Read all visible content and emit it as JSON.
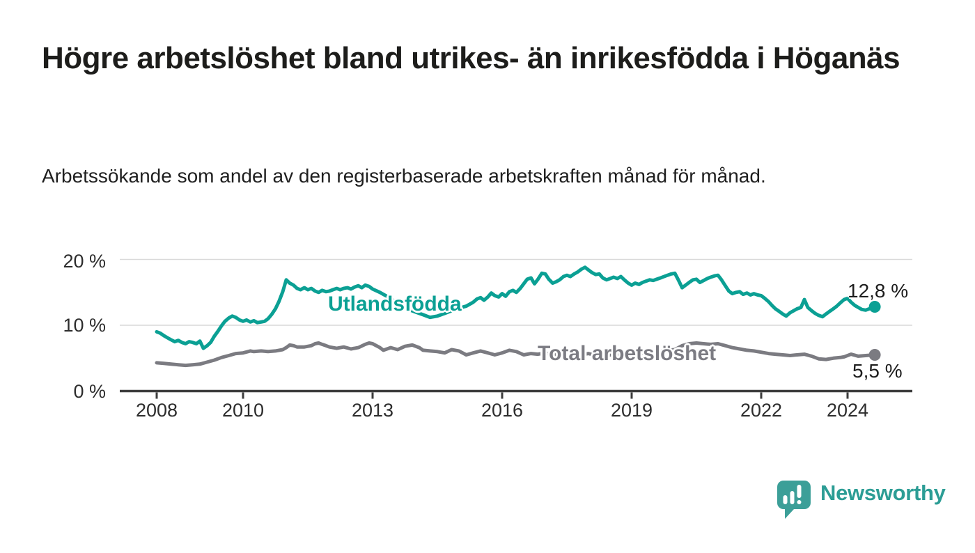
{
  "header": {
    "title": "Högre arbetslöshet bland utrikes- än inrikesfödda i Höganäs",
    "subtitle": "Arbetssökande som andel av den registerbaserade arbetskraften månad för månad."
  },
  "logo": {
    "brand": "Newsworthy"
  },
  "colors": {
    "teal": "#0ba094",
    "gray": "#7b7b81",
    "grid": "#d9d9d9",
    "axis": "#3d3d3d",
    "logo_mark": "#3c9f98",
    "logo_text": "#2c9d95"
  },
  "chart_data": {
    "type": "line",
    "title": "Högre arbetslöshet bland utrikes- än inrikesfödda i Höganäs",
    "xlabel": "",
    "ylabel": "Arbetssökande som andel av den registerbaserade arbetskraften",
    "unit": "%",
    "grid": "horizontal",
    "legend_position": "inline-labels",
    "xlim": [
      2007.15,
      2025.5
    ],
    "ylim": [
      0,
      21
    ],
    "x_tick_years": [
      2008,
      2010,
      2013,
      2016,
      2019,
      2022,
      2024
    ],
    "x_tick_labels": [
      "2008",
      "2010",
      "2013",
      "2016",
      "2019",
      "2022",
      "2024"
    ],
    "y_tick_values": [
      0,
      10,
      20
    ],
    "y_tick_labels": [
      "0 %",
      "10 %",
      "20 %"
    ],
    "y_gridline_values": [
      10,
      20
    ],
    "series": [
      {
        "name": "Total arbetslöshet",
        "color": "#7b7b81",
        "end_label": "5,5 %",
        "end_value": 5.5,
        "points": [
          [
            2008.0,
            4.3
          ],
          [
            2008.17,
            4.2
          ],
          [
            2008.33,
            4.1
          ],
          [
            2008.5,
            4.0
          ],
          [
            2008.67,
            3.9
          ],
          [
            2008.83,
            4.0
          ],
          [
            2009.0,
            4.1
          ],
          [
            2009.17,
            4.4
          ],
          [
            2009.33,
            4.7
          ],
          [
            2009.5,
            5.1
          ],
          [
            2009.67,
            5.4
          ],
          [
            2009.83,
            5.7
          ],
          [
            2010.0,
            5.8
          ],
          [
            2010.17,
            6.1
          ],
          [
            2010.25,
            6.0
          ],
          [
            2010.42,
            6.1
          ],
          [
            2010.58,
            6.0
          ],
          [
            2010.75,
            6.1
          ],
          [
            2010.92,
            6.3
          ],
          [
            2011.0,
            6.6
          ],
          [
            2011.08,
            7.0
          ],
          [
            2011.17,
            6.9
          ],
          [
            2011.25,
            6.7
          ],
          [
            2011.42,
            6.7
          ],
          [
            2011.58,
            6.9
          ],
          [
            2011.67,
            7.2
          ],
          [
            2011.75,
            7.3
          ],
          [
            2011.83,
            7.1
          ],
          [
            2011.92,
            6.9
          ],
          [
            2012.0,
            6.7
          ],
          [
            2012.17,
            6.5
          ],
          [
            2012.33,
            6.7
          ],
          [
            2012.5,
            6.4
          ],
          [
            2012.67,
            6.6
          ],
          [
            2012.83,
            7.1
          ],
          [
            2012.92,
            7.3
          ],
          [
            2013.0,
            7.2
          ],
          [
            2013.17,
            6.6
          ],
          [
            2013.25,
            6.2
          ],
          [
            2013.42,
            6.6
          ],
          [
            2013.58,
            6.3
          ],
          [
            2013.75,
            6.8
          ],
          [
            2013.92,
            7.0
          ],
          [
            2014.08,
            6.6
          ],
          [
            2014.17,
            6.2
          ],
          [
            2014.33,
            6.1
          ],
          [
            2014.5,
            6.0
          ],
          [
            2014.67,
            5.8
          ],
          [
            2014.83,
            6.3
          ],
          [
            2015.0,
            6.1
          ],
          [
            2015.17,
            5.5
          ],
          [
            2015.33,
            5.8
          ],
          [
            2015.5,
            6.1
          ],
          [
            2015.67,
            5.8
          ],
          [
            2015.83,
            5.5
          ],
          [
            2016.0,
            5.8
          ],
          [
            2016.17,
            6.2
          ],
          [
            2016.33,
            6.0
          ],
          [
            2016.5,
            5.5
          ],
          [
            2016.67,
            5.7
          ],
          [
            2016.83,
            5.6
          ],
          [
            2017.0,
            5.8
          ],
          [
            2017.17,
            5.5
          ],
          [
            2017.33,
            5.7
          ],
          [
            2017.5,
            5.4
          ],
          [
            2017.67,
            5.6
          ],
          [
            2017.83,
            5.5
          ],
          [
            2018.0,
            5.7
          ],
          [
            2018.17,
            5.4
          ],
          [
            2018.33,
            5.3
          ],
          [
            2018.5,
            5.5
          ],
          [
            2018.67,
            5.6
          ],
          [
            2018.83,
            5.4
          ],
          [
            2019.0,
            5.5
          ],
          [
            2019.17,
            5.7
          ],
          [
            2019.33,
            5.8
          ],
          [
            2019.5,
            6.0
          ],
          [
            2019.67,
            6.1
          ],
          [
            2019.83,
            6.2
          ],
          [
            2020.0,
            6.3
          ],
          [
            2020.17,
            6.9
          ],
          [
            2020.33,
            7.2
          ],
          [
            2020.5,
            7.3
          ],
          [
            2020.67,
            7.2
          ],
          [
            2020.83,
            7.1
          ],
          [
            2021.0,
            7.2
          ],
          [
            2021.17,
            6.9
          ],
          [
            2021.33,
            6.6
          ],
          [
            2021.5,
            6.4
          ],
          [
            2021.67,
            6.2
          ],
          [
            2021.83,
            6.1
          ],
          [
            2022.0,
            5.9
          ],
          [
            2022.17,
            5.7
          ],
          [
            2022.33,
            5.6
          ],
          [
            2022.5,
            5.5
          ],
          [
            2022.67,
            5.4
          ],
          [
            2022.83,
            5.5
          ],
          [
            2023.0,
            5.6
          ],
          [
            2023.17,
            5.3
          ],
          [
            2023.33,
            4.9
          ],
          [
            2023.5,
            4.8
          ],
          [
            2023.67,
            5.0
          ],
          [
            2023.83,
            5.1
          ],
          [
            2023.92,
            5.2
          ],
          [
            2024.08,
            5.6
          ],
          [
            2024.25,
            5.3
          ],
          [
            2024.42,
            5.4
          ],
          [
            2024.63,
            5.5
          ]
        ]
      },
      {
        "name": "Utlandsfödda",
        "color": "#0ba094",
        "end_label": "12,8 %",
        "end_value": 12.8,
        "points": [
          [
            2008.0,
            9.0
          ],
          [
            2008.08,
            8.8
          ],
          [
            2008.17,
            8.4
          ],
          [
            2008.25,
            8.1
          ],
          [
            2008.33,
            7.8
          ],
          [
            2008.42,
            7.5
          ],
          [
            2008.5,
            7.7
          ],
          [
            2008.58,
            7.4
          ],
          [
            2008.67,
            7.2
          ],
          [
            2008.75,
            7.5
          ],
          [
            2008.83,
            7.4
          ],
          [
            2008.92,
            7.2
          ],
          [
            2009.0,
            7.6
          ],
          [
            2009.08,
            6.5
          ],
          [
            2009.17,
            6.9
          ],
          [
            2009.25,
            7.4
          ],
          [
            2009.33,
            8.3
          ],
          [
            2009.42,
            9.1
          ],
          [
            2009.5,
            9.9
          ],
          [
            2009.58,
            10.6
          ],
          [
            2009.67,
            11.1
          ],
          [
            2009.75,
            11.4
          ],
          [
            2009.83,
            11.2
          ],
          [
            2009.92,
            10.8
          ],
          [
            2010.0,
            10.6
          ],
          [
            2010.08,
            10.8
          ],
          [
            2010.17,
            10.5
          ],
          [
            2010.25,
            10.7
          ],
          [
            2010.33,
            10.4
          ],
          [
            2010.42,
            10.5
          ],
          [
            2010.5,
            10.6
          ],
          [
            2010.58,
            11.0
          ],
          [
            2010.67,
            11.7
          ],
          [
            2010.75,
            12.5
          ],
          [
            2010.83,
            13.6
          ],
          [
            2010.92,
            15.1
          ],
          [
            2011.0,
            16.9
          ],
          [
            2011.08,
            16.4
          ],
          [
            2011.17,
            16.1
          ],
          [
            2011.25,
            15.6
          ],
          [
            2011.33,
            15.4
          ],
          [
            2011.42,
            15.7
          ],
          [
            2011.5,
            15.4
          ],
          [
            2011.58,
            15.6
          ],
          [
            2011.67,
            15.2
          ],
          [
            2011.75,
            15.0
          ],
          [
            2011.83,
            15.3
          ],
          [
            2011.92,
            15.1
          ],
          [
            2012.0,
            15.2
          ],
          [
            2012.08,
            15.4
          ],
          [
            2012.17,
            15.6
          ],
          [
            2012.25,
            15.4
          ],
          [
            2012.33,
            15.6
          ],
          [
            2012.42,
            15.7
          ],
          [
            2012.5,
            15.5
          ],
          [
            2012.58,
            15.8
          ],
          [
            2012.67,
            16.0
          ],
          [
            2012.75,
            15.7
          ],
          [
            2012.83,
            16.1
          ],
          [
            2012.92,
            15.9
          ],
          [
            2013.0,
            15.5
          ],
          [
            2013.17,
            15.0
          ],
          [
            2013.33,
            14.4
          ],
          [
            2013.5,
            13.7
          ],
          [
            2013.67,
            13.0
          ],
          [
            2013.83,
            12.4
          ],
          [
            2014.0,
            12.0
          ],
          [
            2014.17,
            11.6
          ],
          [
            2014.33,
            11.2
          ],
          [
            2014.5,
            11.4
          ],
          [
            2014.67,
            11.8
          ],
          [
            2014.83,
            12.2
          ],
          [
            2015.0,
            12.6
          ],
          [
            2015.17,
            12.9
          ],
          [
            2015.33,
            13.5
          ],
          [
            2015.42,
            14.0
          ],
          [
            2015.5,
            14.2
          ],
          [
            2015.58,
            13.8
          ],
          [
            2015.67,
            14.3
          ],
          [
            2015.75,
            14.9
          ],
          [
            2015.83,
            14.5
          ],
          [
            2015.92,
            14.3
          ],
          [
            2016.0,
            14.8
          ],
          [
            2016.08,
            14.4
          ],
          [
            2016.17,
            15.1
          ],
          [
            2016.25,
            15.3
          ],
          [
            2016.33,
            15.0
          ],
          [
            2016.42,
            15.6
          ],
          [
            2016.5,
            16.3
          ],
          [
            2016.58,
            17.0
          ],
          [
            2016.67,
            17.2
          ],
          [
            2016.75,
            16.3
          ],
          [
            2016.83,
            17.0
          ],
          [
            2016.92,
            17.9
          ],
          [
            2017.0,
            17.8
          ],
          [
            2017.08,
            17.0
          ],
          [
            2017.17,
            16.4
          ],
          [
            2017.25,
            16.6
          ],
          [
            2017.33,
            16.9
          ],
          [
            2017.42,
            17.4
          ],
          [
            2017.5,
            17.6
          ],
          [
            2017.58,
            17.4
          ],
          [
            2017.67,
            17.8
          ],
          [
            2017.75,
            18.1
          ],
          [
            2017.83,
            18.5
          ],
          [
            2017.92,
            18.8
          ],
          [
            2018.0,
            18.4
          ],
          [
            2018.08,
            18.0
          ],
          [
            2018.17,
            17.7
          ],
          [
            2018.25,
            17.8
          ],
          [
            2018.33,
            17.2
          ],
          [
            2018.42,
            16.9
          ],
          [
            2018.5,
            17.1
          ],
          [
            2018.58,
            17.3
          ],
          [
            2018.67,
            17.1
          ],
          [
            2018.75,
            17.4
          ],
          [
            2018.83,
            16.9
          ],
          [
            2018.92,
            16.4
          ],
          [
            2019.0,
            16.1
          ],
          [
            2019.08,
            16.4
          ],
          [
            2019.17,
            16.2
          ],
          [
            2019.25,
            16.5
          ],
          [
            2019.33,
            16.7
          ],
          [
            2019.42,
            16.9
          ],
          [
            2019.5,
            16.8
          ],
          [
            2019.58,
            17.0
          ],
          [
            2019.67,
            17.2
          ],
          [
            2019.75,
            17.4
          ],
          [
            2019.83,
            17.6
          ],
          [
            2019.92,
            17.8
          ],
          [
            2020.0,
            17.9
          ],
          [
            2020.08,
            16.9
          ],
          [
            2020.17,
            15.7
          ],
          [
            2020.25,
            16.1
          ],
          [
            2020.33,
            16.5
          ],
          [
            2020.42,
            16.9
          ],
          [
            2020.5,
            17.0
          ],
          [
            2020.58,
            16.5
          ],
          [
            2020.67,
            16.8
          ],
          [
            2020.75,
            17.1
          ],
          [
            2020.83,
            17.3
          ],
          [
            2020.92,
            17.5
          ],
          [
            2021.0,
            17.6
          ],
          [
            2021.08,
            16.9
          ],
          [
            2021.17,
            16.0
          ],
          [
            2021.25,
            15.2
          ],
          [
            2021.33,
            14.8
          ],
          [
            2021.42,
            15.0
          ],
          [
            2021.5,
            15.1
          ],
          [
            2021.58,
            14.7
          ],
          [
            2021.67,
            14.9
          ],
          [
            2021.75,
            14.6
          ],
          [
            2021.83,
            14.8
          ],
          [
            2021.92,
            14.6
          ],
          [
            2022.0,
            14.5
          ],
          [
            2022.08,
            14.1
          ],
          [
            2022.17,
            13.6
          ],
          [
            2022.25,
            13.0
          ],
          [
            2022.33,
            12.5
          ],
          [
            2022.42,
            12.1
          ],
          [
            2022.5,
            11.7
          ],
          [
            2022.58,
            11.4
          ],
          [
            2022.67,
            11.9
          ],
          [
            2022.75,
            12.2
          ],
          [
            2022.83,
            12.5
          ],
          [
            2022.92,
            12.7
          ],
          [
            2023.0,
            13.9
          ],
          [
            2023.08,
            12.7
          ],
          [
            2023.17,
            12.2
          ],
          [
            2023.25,
            11.8
          ],
          [
            2023.33,
            11.5
          ],
          [
            2023.42,
            11.3
          ],
          [
            2023.5,
            11.7
          ],
          [
            2023.58,
            12.1
          ],
          [
            2023.67,
            12.5
          ],
          [
            2023.75,
            12.9
          ],
          [
            2023.83,
            13.4
          ],
          [
            2023.92,
            13.9
          ],
          [
            2024.0,
            14.1
          ],
          [
            2024.08,
            13.5
          ],
          [
            2024.17,
            13.0
          ],
          [
            2024.25,
            12.7
          ],
          [
            2024.33,
            12.4
          ],
          [
            2024.42,
            12.3
          ],
          [
            2024.5,
            12.5
          ],
          [
            2024.63,
            12.8
          ]
        ]
      }
    ]
  }
}
